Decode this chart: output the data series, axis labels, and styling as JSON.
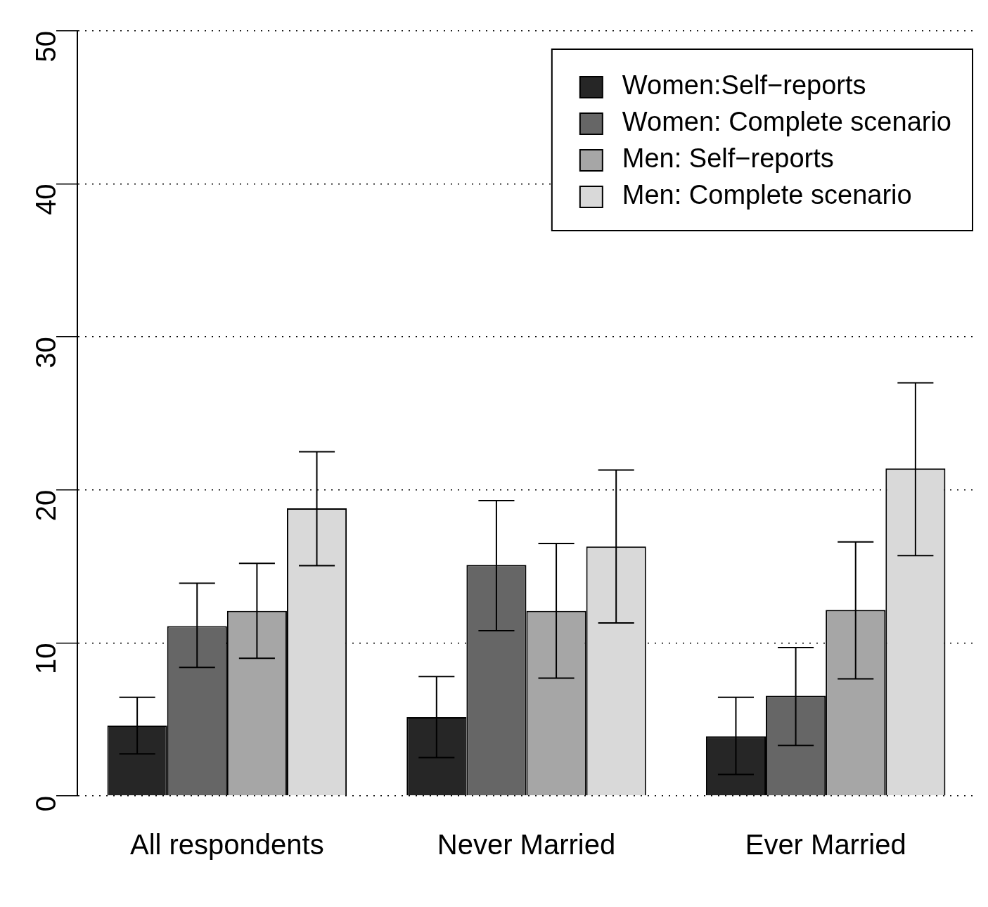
{
  "chart_data": {
    "type": "bar",
    "categories": [
      "All respondents",
      "Never Married",
      "Ever Married"
    ],
    "series": [
      {
        "name": "Women:Self−reports",
        "color": "#262626",
        "values": [
          4.6,
          5.15,
          3.9
        ],
        "errors": [
          [
            2.75,
            6.45
          ],
          [
            2.5,
            7.8
          ],
          [
            1.4,
            6.45
          ]
        ]
      },
      {
        "name": "Women: Complete scenario",
        "color": "#666666",
        "values": [
          11.1,
          15.1,
          6.55
        ],
        "errors": [
          [
            8.4,
            13.9
          ],
          [
            10.8,
            19.3
          ],
          [
            3.3,
            9.7
          ]
        ]
      },
      {
        "name": "Men: Self−reports",
        "color": "#a6a6a6",
        "values": [
          12.1,
          12.1,
          12.15
        ],
        "errors": [
          [
            9.0,
            15.2
          ],
          [
            7.7,
            16.5
          ],
          [
            7.65,
            16.6
          ]
        ]
      },
      {
        "name": "Men: Complete scenario",
        "color": "#d9d9d9",
        "values": [
          18.8,
          16.3,
          21.4
        ],
        "errors": [
          [
            15.05,
            22.5
          ],
          [
            11.3,
            21.3
          ],
          [
            15.7,
            27.0
          ]
        ]
      }
    ],
    "ylim": [
      0,
      50
    ],
    "yticks": [
      0,
      10,
      20,
      30,
      40,
      50
    ],
    "grid": "y",
    "line_style": "dotted",
    "legend": "top right"
  }
}
